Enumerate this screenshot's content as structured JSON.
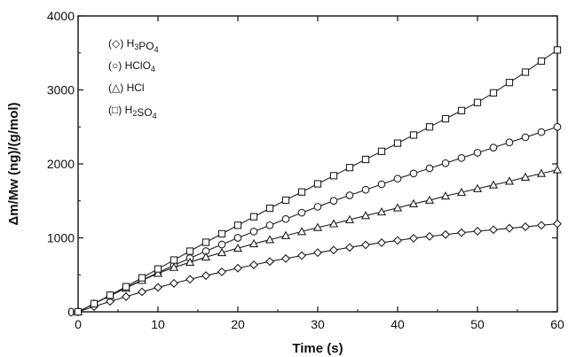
{
  "chart_data": {
    "type": "line",
    "title": "",
    "xlabel": "Time (s)",
    "ylabel": "Δm/Mw (ng)/(g/mol)",
    "xlim": [
      0,
      60
    ],
    "ylim": [
      0,
      4000
    ],
    "xticks": [
      0,
      10,
      20,
      30,
      40,
      50,
      60
    ],
    "yticks": [
      0,
      1000,
      2000,
      3000,
      4000
    ],
    "grid": false,
    "legend_position": "top-left",
    "series": [
      {
        "name": "H3PO4",
        "legend_prefix": "(◇)",
        "legend_base": "H",
        "legend_sub1": "3",
        "legend_mid": "PO",
        "legend_sub2": "4",
        "marker": "diamond",
        "x": [
          0,
          2,
          4,
          6,
          8,
          10,
          12,
          14,
          16,
          18,
          20,
          22,
          24,
          26,
          28,
          30,
          32,
          34,
          36,
          38,
          40,
          42,
          44,
          46,
          48,
          50,
          52,
          54,
          56,
          58,
          60
        ],
        "values": [
          0,
          70,
          140,
          205,
          270,
          330,
          385,
          440,
          490,
          540,
          590,
          635,
          680,
          720,
          760,
          800,
          835,
          870,
          905,
          935,
          965,
          995,
          1020,
          1045,
          1070,
          1090,
          1110,
          1130,
          1150,
          1170,
          1190
        ]
      },
      {
        "name": "HClO4",
        "legend_prefix": "(○)",
        "legend_base": "HClO",
        "legend_sub1": "4",
        "legend_mid": "",
        "legend_sub2": "",
        "marker": "circle",
        "x": [
          0,
          2,
          4,
          6,
          8,
          10,
          12,
          14,
          16,
          18,
          20,
          22,
          24,
          26,
          28,
          30,
          32,
          34,
          36,
          38,
          40,
          42,
          44,
          46,
          48,
          50,
          52,
          54,
          56,
          58,
          60
        ],
        "values": [
          0,
          110,
          215,
          325,
          430,
          530,
          630,
          725,
          820,
          910,
          1000,
          1085,
          1170,
          1255,
          1340,
          1420,
          1500,
          1575,
          1650,
          1725,
          1800,
          1870,
          1940,
          2010,
          2080,
          2150,
          2220,
          2290,
          2360,
          2430,
          2500
        ]
      },
      {
        "name": "HCl",
        "legend_prefix": "(△)",
        "legend_base": "HCl",
        "legend_sub1": "",
        "legend_mid": "",
        "legend_sub2": "",
        "marker": "triangle",
        "x": [
          0,
          2,
          4,
          6,
          8,
          10,
          12,
          14,
          16,
          18,
          20,
          22,
          24,
          26,
          28,
          30,
          32,
          34,
          36,
          38,
          40,
          42,
          44,
          46,
          48,
          50,
          52,
          54,
          56,
          58,
          60
        ],
        "values": [
          0,
          110,
          220,
          320,
          425,
          520,
          600,
          670,
          740,
          800,
          860,
          920,
          975,
          1030,
          1085,
          1140,
          1190,
          1245,
          1300,
          1350,
          1405,
          1460,
          1510,
          1565,
          1615,
          1665,
          1715,
          1765,
          1820,
          1870,
          1920
        ]
      },
      {
        "name": "H2SO4",
        "legend_prefix": "(□)",
        "legend_base": "H",
        "legend_sub1": "2",
        "legend_mid": "SO",
        "legend_sub2": "4",
        "marker": "square",
        "x": [
          0,
          2,
          4,
          6,
          8,
          10,
          12,
          14,
          16,
          18,
          20,
          22,
          24,
          26,
          28,
          30,
          32,
          34,
          36,
          38,
          40,
          42,
          44,
          46,
          48,
          50,
          52,
          54,
          56,
          58,
          60
        ],
        "values": [
          0,
          110,
          225,
          340,
          460,
          580,
          700,
          820,
          940,
          1055,
          1170,
          1285,
          1400,
          1510,
          1620,
          1730,
          1840,
          1950,
          2060,
          2170,
          2280,
          2390,
          2500,
          2610,
          2720,
          2830,
          2960,
          3100,
          3240,
          3390,
          3540
        ]
      }
    ]
  }
}
